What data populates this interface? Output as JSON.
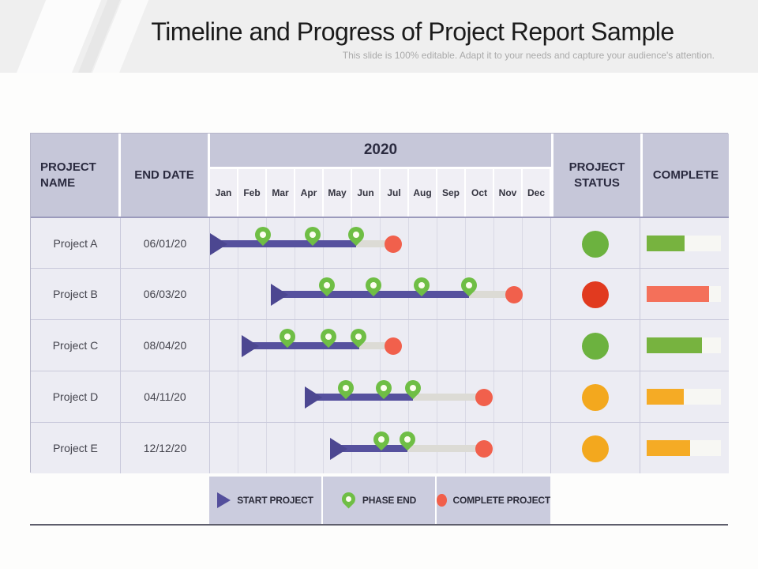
{
  "slide": {
    "title": "Timeline and Progress of Project Report Sample",
    "subtitle": "This slide is 100% editable. Adapt it to your needs and capture your audience's attention."
  },
  "table": {
    "header": {
      "project_name": "PROJECT NAME",
      "end_date": "END DATE",
      "year": "2020",
      "project_status": "PROJECT STATUS",
      "complete": "COMPLETE"
    },
    "months": [
      "Jan",
      "Feb",
      "Mar",
      "Apr",
      "May",
      "Jun",
      "Jul",
      "Aug",
      "Sep",
      "Oct",
      "Nov",
      "Dec"
    ]
  },
  "projects": [
    {
      "name": "Project A",
      "end_date": "06/01/20",
      "status": "green",
      "complete_pct": 51,
      "timeline": {
        "start": 0.0,
        "bar_end": 5.14,
        "phase_ends": [
          1.86,
          3.61,
          5.14
        ],
        "complete_at": 6.44
      }
    },
    {
      "name": "Project B",
      "end_date": "06/03/20",
      "status": "red",
      "complete_pct": 84,
      "timeline": {
        "start": 2.14,
        "bar_end": 9.11,
        "phase_ends": [
          4.11,
          5.75,
          7.44,
          9.11
        ],
        "complete_at": 10.69
      }
    },
    {
      "name": "Project C",
      "end_date": "08/04/20",
      "status": "green",
      "complete_pct": 74,
      "timeline": {
        "start": 1.11,
        "bar_end": 5.25,
        "phase_ends": [
          2.72,
          4.17,
          5.22
        ],
        "complete_at": 6.44
      }
    },
    {
      "name": "Project D",
      "end_date": "04/11/20",
      "status": "amber",
      "complete_pct": 50,
      "timeline": {
        "start": 3.33,
        "bar_end": 7.14,
        "phase_ends": [
          4.78,
          6.11,
          7.14
        ],
        "complete_at": 9.64
      }
    },
    {
      "name": "Project E",
      "end_date": "12/12/20",
      "status": "amber",
      "complete_pct": 58,
      "timeline": {
        "start": 4.22,
        "bar_end": 6.94,
        "phase_ends": [
          6.03,
          6.94
        ],
        "complete_at": 9.64
      }
    }
  ],
  "legend": {
    "items": [
      {
        "icon": "start-arrow-icon",
        "label": "START PROJECT"
      },
      {
        "icon": "phase-end-pin-icon",
        "label": "PHASE END"
      },
      {
        "icon": "complete-dot-icon",
        "label": "COMPLETE PROJECT"
      }
    ]
  },
  "colors": {
    "bar_purple": "#56519e",
    "arrow_purple": "#4c4791",
    "track_gray": "#dcdbd5",
    "pin_green": "#6fbe45",
    "dot_red": "#f1604c",
    "status_green": "#6cb23f",
    "status_red": "#e13a1f",
    "status_amber": "#f3a81e",
    "fill_green": "#77b33f",
    "fill_salmon": "#f4705a",
    "fill_amber": "#f5ab25",
    "header_lavender": "#c6c7d9",
    "month_header_bg": "#f0eff5",
    "row_bg": "#ececf3",
    "legend_lavender": "#cbccde"
  },
  "chart_data": {
    "type": "table",
    "title": "Timeline and Progress of Project Report Sample",
    "year": "2020",
    "columns": [
      "PROJECT NAME",
      "END DATE",
      "2020 (Jan-Dec Gantt timeline)",
      "PROJECT STATUS",
      "COMPLETE"
    ],
    "months": [
      "Jan",
      "Feb",
      "Mar",
      "Apr",
      "May",
      "Jun",
      "Jul",
      "Aug",
      "Sep",
      "Oct",
      "Nov",
      "Dec"
    ],
    "rows": [
      {
        "project": "Project A",
        "end_date": "06/01/20",
        "start_month": "Jan",
        "phase_end_months": [
          "Feb",
          "Apr",
          "Jun"
        ],
        "complete_month": "Jul",
        "status_light": "green",
        "progress_pct": 51
      },
      {
        "project": "Project B",
        "end_date": "06/03/20",
        "start_month": "Mar",
        "phase_end_months": [
          "May",
          "Jun",
          "Aug",
          "Oct"
        ],
        "complete_month": "Nov",
        "status_light": "red",
        "progress_pct": 84
      },
      {
        "project": "Project C",
        "end_date": "08/04/20",
        "start_month": "Feb",
        "phase_end_months": [
          "Mar",
          "May",
          "Jun"
        ],
        "complete_month": "Jul",
        "status_light": "green",
        "progress_pct": 74
      },
      {
        "project": "Project D",
        "end_date": "04/11/20",
        "start_month": "Apr",
        "phase_end_months": [
          "May",
          "Jun",
          "Jul"
        ],
        "complete_month": "Oct",
        "status_light": "amber",
        "progress_pct": 50
      },
      {
        "project": "Project E",
        "end_date": "12/12/20",
        "start_month": "May",
        "phase_end_months": [
          "Jul",
          "Aug"
        ],
        "complete_month": "Oct",
        "status_light": "amber",
        "progress_pct": 58
      }
    ],
    "legend": [
      "START PROJECT",
      "PHASE END",
      "COMPLETE PROJECT"
    ],
    "layout_hints": {
      "timeline_axis": "months Jan-Dec 2020",
      "grid": true,
      "legend_position": "bottom"
    }
  }
}
